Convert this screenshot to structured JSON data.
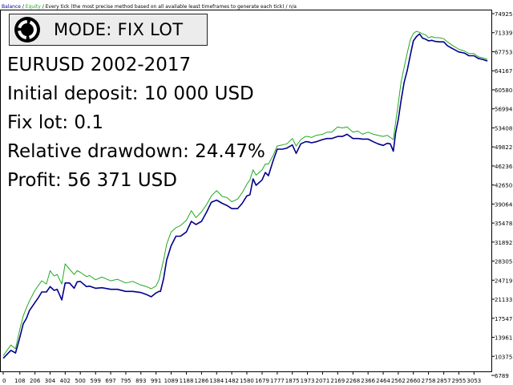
{
  "header": {
    "balance_label": "Balance",
    "equity_label": "Equity",
    "description": "Every tick (the most precise method based on all available least timeframes to generate each tick)",
    "tail": "n/a",
    "balance_color": "#00008b",
    "equity_color": "#22aa22"
  },
  "mode": {
    "label": "MODE: FIX LOT",
    "icon": "ring-logo-icon"
  },
  "info": {
    "line1": "EURUSD 2002-2017",
    "line2": "Initial deposit: 10 000 USD",
    "line3": "Fix lot: 0.1",
    "line4": "Relative drawdown: 24.47%",
    "line5": "Profit: 56 371 USD"
  },
  "chart_data": {
    "type": "line",
    "x_ticks": [
      "0",
      "108",
      "206",
      "304",
      "402",
      "500",
      "599",
      "697",
      "795",
      "893",
      "991",
      "1089",
      "1188",
      "1286",
      "1384",
      "1482",
      "1580",
      "1679",
      "1777",
      "1875",
      "1973",
      "2071",
      "2169",
      "2268",
      "2366",
      "2464",
      "2562",
      "2660",
      "2758",
      "2857",
      "2955",
      "3053"
    ],
    "y_ticks": [
      "74925",
      "71339",
      "67753",
      "64167",
      "60580",
      "56994",
      "53408",
      "49822",
      "46236",
      "42650",
      "39064",
      "35478",
      "31892",
      "28305",
      "24719",
      "21133",
      "17547",
      "13961",
      "10375",
      "6789"
    ],
    "xlim": [
      0,
      3150
    ],
    "ylim": [
      6789,
      74925
    ],
    "series": [
      {
        "name": "Balance",
        "color": "#00008b",
        "x": [
          0,
          50,
          80,
          108,
          130,
          150,
          170,
          206,
          230,
          250,
          280,
          304,
          330,
          350,
          380,
          402,
          430,
          460,
          480,
          500,
          540,
          560,
          599,
          640,
          697,
          740,
          795,
          840,
          893,
          930,
          960,
          991,
          1010,
          1020,
          1040,
          1060,
          1089,
          1120,
          1150,
          1188,
          1220,
          1250,
          1286,
          1320,
          1350,
          1384,
          1420,
          1450,
          1482,
          1520,
          1550,
          1580,
          1600,
          1620,
          1640,
          1679,
          1700,
          1720,
          1750,
          1777,
          1810,
          1840,
          1875,
          1900,
          1930,
          1960,
          1973,
          2000,
          2030,
          2071,
          2100,
          2130,
          2169,
          2200,
          2230,
          2268,
          2300,
          2330,
          2366,
          2400,
          2430,
          2464,
          2490,
          2510,
          2530,
          2545,
          2562,
          2580,
          2600,
          2620,
          2640,
          2660,
          2680,
          2700,
          2720,
          2740,
          2758,
          2780,
          2800,
          2830,
          2857,
          2880,
          2910,
          2955,
          2990,
          3020,
          3053,
          3080,
          3110,
          3140
        ],
        "y": [
          10000,
          11500,
          11000,
          14000,
          16500,
          17500,
          19000,
          20500,
          21500,
          22500,
          22500,
          23500,
          22800,
          23000,
          21000,
          24200,
          24200,
          23200,
          24400,
          24500,
          23500,
          23600,
          23200,
          23300,
          23000,
          23000,
          22600,
          22600,
          22400,
          22000,
          21600,
          22300,
          22600,
          22600,
          25000,
          28500,
          31200,
          33000,
          33000,
          33800,
          35800,
          35200,
          35800,
          37600,
          39400,
          39800,
          39200,
          38800,
          38200,
          38200,
          39200,
          40600,
          40800,
          43800,
          42600,
          43600,
          45000,
          44400,
          47200,
          49400,
          49400,
          49600,
          50200,
          48600,
          50400,
          50800,
          50800,
          50600,
          50800,
          51200,
          51400,
          51400,
          51800,
          51800,
          52200,
          51400,
          51400,
          51300,
          51300,
          50800,
          50400,
          50100,
          50500,
          50400,
          49000,
          52500,
          55000,
          58500,
          62000,
          64200,
          67100,
          69800,
          70600,
          71100,
          70300,
          70100,
          69800,
          69900,
          69700,
          69600,
          69600,
          68900,
          68400,
          67700,
          67500,
          67000,
          67000,
          66500,
          66300,
          66000
        ]
      },
      {
        "name": "Equity",
        "color": "#22aa22",
        "x": [
          0,
          50,
          80,
          108,
          130,
          150,
          170,
          206,
          230,
          250,
          280,
          304,
          330,
          350,
          380,
          402,
          430,
          460,
          480,
          500,
          540,
          560,
          599,
          640,
          697,
          740,
          795,
          840,
          893,
          930,
          960,
          991,
          1010,
          1020,
          1040,
          1060,
          1089,
          1120,
          1150,
          1188,
          1220,
          1250,
          1286,
          1320,
          1350,
          1384,
          1420,
          1450,
          1482,
          1520,
          1550,
          1580,
          1600,
          1620,
          1640,
          1679,
          1700,
          1720,
          1750,
          1777,
          1810,
          1840,
          1875,
          1900,
          1930,
          1960,
          1973,
          2000,
          2030,
          2071,
          2100,
          2130,
          2169,
          2200,
          2230,
          2268,
          2300,
          2330,
          2366,
          2400,
          2430,
          2464,
          2490,
          2510,
          2530,
          2545,
          2562,
          2580,
          2600,
          2620,
          2640,
          2660,
          2680,
          2700,
          2720,
          2740,
          2758,
          2780,
          2800,
          2830,
          2857,
          2880,
          2910,
          2955,
          2990,
          3020,
          3053,
          3080,
          3110,
          3140
        ],
        "y": [
          10500,
          12500,
          11800,
          15500,
          18000,
          19500,
          20800,
          22800,
          23800,
          24600,
          24000,
          26500,
          25500,
          25800,
          24000,
          27800,
          26800,
          25800,
          26500,
          26200,
          25400,
          25600,
          24800,
          25300,
          24600,
          24900,
          24200,
          24500,
          23800,
          23500,
          23100,
          23600,
          24800,
          26000,
          28500,
          31500,
          33800,
          34600,
          35000,
          36000,
          37800,
          36500,
          37600,
          39000,
          40600,
          41600,
          40500,
          40300,
          39500,
          40000,
          41200,
          42800,
          43600,
          45500,
          44500,
          45500,
          46600,
          46600,
          48200,
          50000,
          50200,
          50400,
          51400,
          50000,
          51200,
          51800,
          51800,
          51600,
          52000,
          52200,
          52600,
          52600,
          53600,
          53400,
          53600,
          52600,
          52800,
          52200,
          52600,
          52200,
          52000,
          51800,
          52000,
          51600,
          51200,
          54500,
          58000,
          62000,
          64800,
          67500,
          70000,
          71200,
          71600,
          71400,
          71100,
          70900,
          70400,
          70600,
          70400,
          70400,
          70200,
          69600,
          69000,
          68200,
          67900,
          67400,
          67400,
          66800,
          66600,
          66300
        ]
      }
    ]
  }
}
